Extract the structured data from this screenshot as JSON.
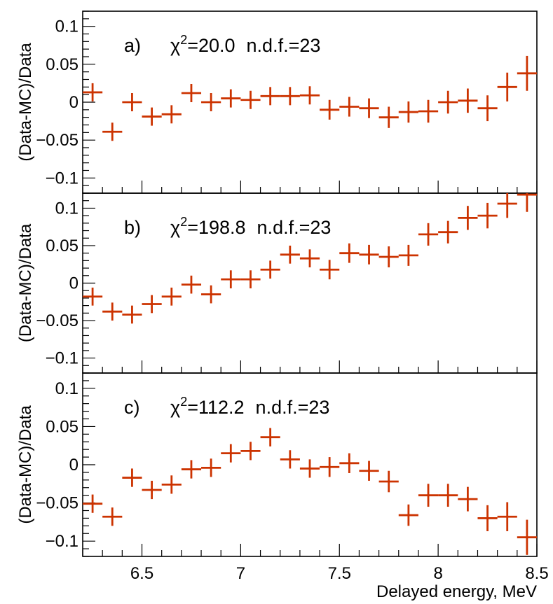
{
  "chart_data": {
    "type": "scatter",
    "shared_x": {
      "label": "Delayed energy, MeV",
      "xlim": [
        6.2,
        8.5
      ],
      "ticks": [
        6.5,
        7,
        7.5,
        8,
        8.5
      ],
      "tick_labels": [
        "6.5",
        "7",
        "7.5",
        "8",
        "8.5"
      ],
      "bin_width": 0.1,
      "x": [
        6.25,
        6.35,
        6.45,
        6.55,
        6.65,
        6.75,
        6.85,
        6.95,
        7.05,
        7.15,
        7.25,
        7.35,
        7.45,
        7.55,
        7.65,
        7.75,
        7.85,
        7.95,
        8.05,
        8.15,
        8.25,
        8.35,
        8.45
      ]
    },
    "ylabel": "(Data-MC)/Data",
    "ylim": [
      -0.12,
      0.12
    ],
    "y_ticks": [
      -0.1,
      -0.05,
      0,
      0.05,
      0.1
    ],
    "y_tick_labels": [
      "−0.1",
      "−0.05",
      "0",
      "0.05",
      "0.1"
    ],
    "marker_color": "#cc3300",
    "panels": [
      {
        "label": "a)",
        "chi2_text": "=20.0",
        "ndf_text": "n.d.f.=23",
        "values": [
          0.013,
          -0.039,
          0.0,
          -0.019,
          -0.016,
          0.012,
          0.0,
          0.005,
          0.003,
          0.008,
          0.008,
          0.009,
          -0.01,
          -0.006,
          -0.008,
          -0.02,
          -0.013,
          -0.012,
          0.0,
          0.002,
          -0.008,
          0.02,
          0.038
        ],
        "errors": [
          0.012,
          0.012,
          0.012,
          0.012,
          0.012,
          0.012,
          0.012,
          0.012,
          0.012,
          0.012,
          0.012,
          0.012,
          0.013,
          0.013,
          0.013,
          0.014,
          0.014,
          0.015,
          0.015,
          0.016,
          0.017,
          0.019,
          0.023
        ]
      },
      {
        "label": "b)",
        "chi2_text": "=198.8",
        "ndf_text": "n.d.f.=23",
        "values": [
          -0.018,
          -0.038,
          -0.042,
          -0.028,
          -0.018,
          -0.002,
          -0.015,
          0.005,
          0.005,
          0.018,
          0.038,
          0.033,
          0.018,
          0.04,
          0.038,
          0.035,
          0.037,
          0.065,
          0.068,
          0.087,
          0.09,
          0.106,
          0.118
        ],
        "errors": [
          0.012,
          0.012,
          0.012,
          0.012,
          0.012,
          0.012,
          0.012,
          0.012,
          0.012,
          0.012,
          0.012,
          0.012,
          0.013,
          0.013,
          0.013,
          0.014,
          0.014,
          0.015,
          0.015,
          0.016,
          0.017,
          0.019,
          0.023
        ]
      },
      {
        "label": "c)",
        "chi2_text": "=112.2",
        "ndf_text": "n.d.f.=23",
        "values": [
          -0.051,
          -0.068,
          -0.017,
          -0.033,
          -0.026,
          -0.006,
          -0.004,
          0.015,
          0.018,
          0.036,
          0.007,
          -0.005,
          -0.003,
          0.002,
          -0.008,
          -0.022,
          -0.066,
          -0.04,
          -0.04,
          -0.045,
          -0.07,
          -0.068,
          -0.095
        ],
        "errors": [
          0.012,
          0.012,
          0.012,
          0.012,
          0.012,
          0.012,
          0.012,
          0.012,
          0.012,
          0.012,
          0.012,
          0.012,
          0.013,
          0.013,
          0.013,
          0.014,
          0.014,
          0.015,
          0.015,
          0.016,
          0.017,
          0.019,
          0.023
        ]
      }
    ]
  }
}
